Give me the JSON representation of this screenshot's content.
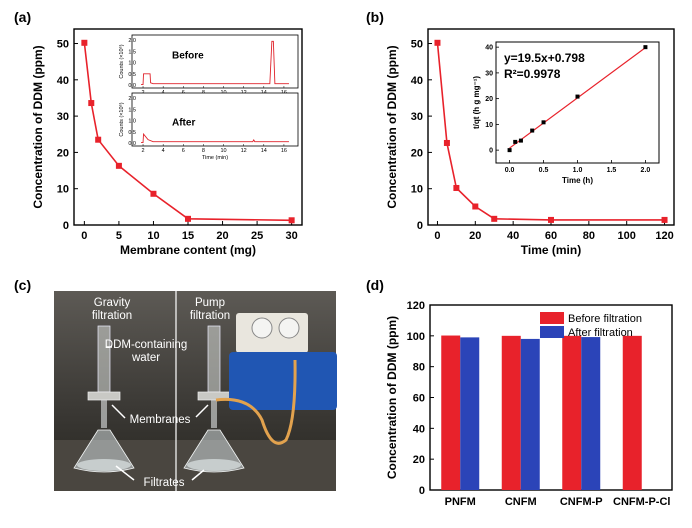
{
  "panels": {
    "a": "(a)",
    "b": "(b)",
    "c": "(c)",
    "d": "(d)"
  },
  "colors": {
    "red": "#e8222b",
    "blue": "#2b44b8",
    "spectrum": "#e0232b"
  },
  "photo": {
    "gravity": "Gravity\nfiltration",
    "pump": "Pump\nfiltration",
    "ddm_water": "DDM-containing\nwater",
    "membranes": "Membranes",
    "filtrates": "Filtrates"
  },
  "chart_data": [
    {
      "type": "line",
      "panel": "a",
      "xlabel": "Membrane content (mg)",
      "ylabel": "Concentration of DDM (ppm)",
      "xlim": [
        -1.5,
        31.5
      ],
      "ylim": [
        0,
        54
      ],
      "xticks": [
        0,
        5,
        10,
        15,
        20,
        25,
        30
      ],
      "yticks": [
        0,
        10,
        20,
        30,
        40,
        50
      ],
      "x": [
        0,
        1,
        2,
        5,
        10,
        15,
        30
      ],
      "y": [
        50.2,
        33.6,
        23.5,
        16.3,
        8.6,
        1.7,
        1.3
      ],
      "insets": [
        {
          "label": "Before",
          "ylabel": "Counts (×10⁶)",
          "xticks": [
            2,
            4,
            6,
            8,
            10,
            12,
            14,
            16
          ],
          "yticks": [
            "0.0",
            "0.5",
            "1.0",
            "1.5",
            "2.0"
          ]
        },
        {
          "label": "After",
          "ylabel": "Counts (×10⁶)",
          "xlabel": "Time (min)",
          "xticks": [
            2,
            4,
            6,
            8,
            10,
            12,
            14,
            16
          ],
          "yticks": [
            "0.0",
            "0.5",
            "1.0",
            "1.5",
            "2.0"
          ]
        }
      ]
    },
    {
      "type": "line",
      "panel": "b",
      "xlabel": "Time (min)",
      "ylabel": "Concentration of DDM (ppm)",
      "xlim": [
        -5,
        125
      ],
      "ylim": [
        0,
        54
      ],
      "xticks": [
        0,
        20,
        40,
        60,
        80,
        100,
        120
      ],
      "yticks": [
        0,
        10,
        20,
        30,
        40,
        50
      ],
      "x": [
        0,
        5,
        10,
        20,
        30,
        60,
        120
      ],
      "y": [
        50.2,
        22.6,
        10.2,
        5.1,
        1.7,
        1.4,
        1.4
      ],
      "inset": {
        "type": "scatter",
        "xlabel": "Time (h)",
        "ylabel": "t/qt (h g mg⁻¹)",
        "equation": "y=19.5x+0.798",
        "r2": "R²=0.9978",
        "xlim": [
          -0.2,
          2.2
        ],
        "ylim": [
          -5,
          42
        ],
        "xticks": [
          "0.0",
          "0.5",
          "1.0",
          "1.5",
          "2.0"
        ],
        "yticks": [
          0,
          10,
          20,
          30,
          40
        ],
        "x": [
          0.0,
          0.083,
          0.167,
          0.333,
          0.5,
          1.0,
          2.0
        ],
        "y": [
          0.0,
          3.2,
          3.7,
          7.6,
          10.8,
          20.8,
          40.0
        ]
      }
    },
    {
      "type": "bar",
      "panel": "d",
      "ylabel": "Concentration of DDM (ppm)",
      "ylim": [
        0,
        120
      ],
      "yticks": [
        0,
        20,
        40,
        60,
        80,
        100,
        120
      ],
      "categories": [
        "PNFM",
        "CNFM",
        "CNFM-P",
        "CNFM-P-Cl"
      ],
      "series": [
        {
          "name": "Before filtration",
          "values": [
            100.2,
            100.0,
            100.0,
            100.0
          ]
        },
        {
          "name": "After filtration",
          "values": [
            99.0,
            98.0,
            99.2,
            0
          ]
        }
      ]
    }
  ]
}
